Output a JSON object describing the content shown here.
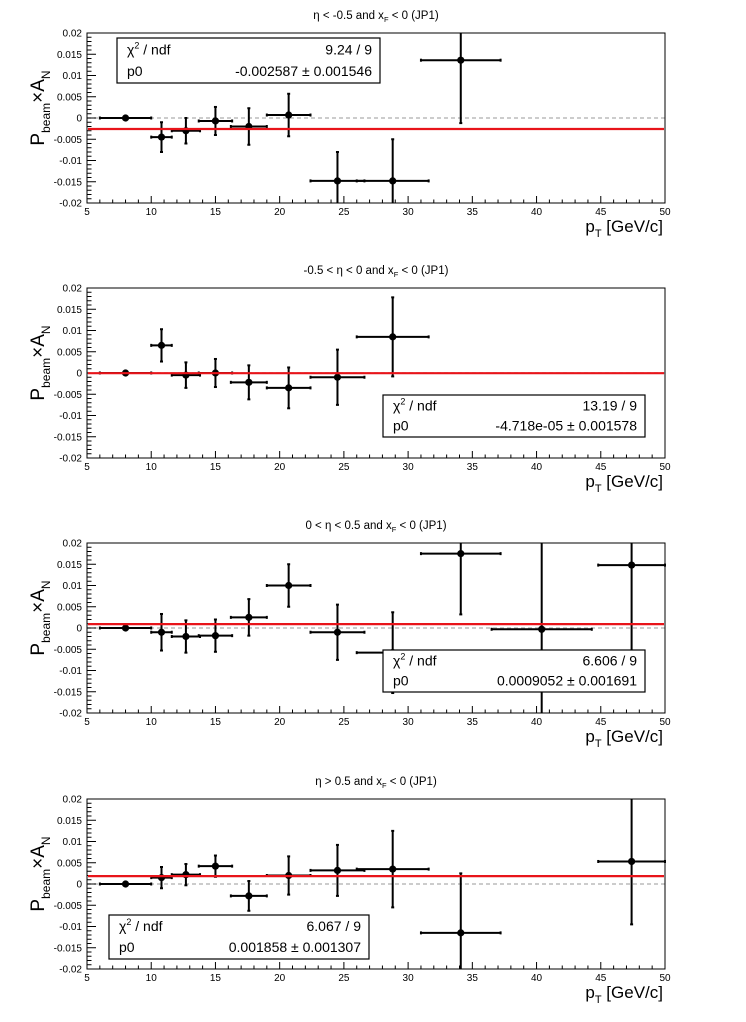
{
  "chart_data": [
    {
      "type": "scatter",
      "title_parts": [
        "η < -0.5 and x",
        "F",
        " < 0 (JP1)"
      ],
      "xlabel_parts": [
        "p",
        "T",
        " [GeV/c]"
      ],
      "ylabel_parts": [
        "P",
        "beam",
        "×A",
        "N"
      ],
      "xlim": [
        5,
        50
      ],
      "ylim": [
        -0.02,
        0.02
      ],
      "xticks": [
        5,
        10,
        15,
        20,
        25,
        30,
        35,
        40,
        45,
        50
      ],
      "yticks": [
        -0.02,
        -0.015,
        -0.01,
        -0.005,
        0,
        0.005,
        0.01,
        0.015,
        0.02
      ],
      "ytick_labels": [
        "-0.02",
        "-0.015",
        "-0.01",
        "-0.005",
        "0",
        "0.005",
        "0.01",
        "0.015",
        "0.02"
      ],
      "points": [
        {
          "x": 8.0,
          "xerr": 2.0,
          "y": 0.0,
          "yerr": 0.0
        },
        {
          "x": 10.8,
          "xerr": 0.8,
          "y": -0.0045,
          "yerr": 0.0035
        },
        {
          "x": 12.7,
          "xerr": 1.1,
          "y": -0.003,
          "yerr": 0.003
        },
        {
          "x": 15.0,
          "xerr": 1.3,
          "y": -0.0007,
          "yerr": 0.0033
        },
        {
          "x": 17.6,
          "xerr": 1.4,
          "y": -0.002,
          "yerr": 0.0043
        },
        {
          "x": 20.7,
          "xerr": 1.7,
          "y": 0.0007,
          "yerr": 0.005
        },
        {
          "x": 24.5,
          "xerr": 2.1,
          "y": -0.0148,
          "yerr": 0.0068
        },
        {
          "x": 28.8,
          "xerr": 2.8,
          "y": -0.0148,
          "yerr": 0.0098
        },
        {
          "x": 34.1,
          "xerr": 3.1,
          "y": 0.0136,
          "yerr": 0.0148
        }
      ],
      "fit": {
        "p0": -0.002587
      },
      "stats": {
        "label1": "χ",
        "label1_sup": "2",
        "label1_rest": " / ndf",
        "value1": "9.24 / 9",
        "label2": "p0",
        "value2": "-0.002587 ± 0.001546",
        "position": "top-left"
      }
    },
    {
      "type": "scatter",
      "title_parts": [
        "-0.5 < η < 0 and x",
        "F",
        " < 0 (JP1)"
      ],
      "xlabel_parts": [
        "p",
        "T",
        " [GeV/c]"
      ],
      "ylabel_parts": [
        "P",
        "beam",
        "×A",
        "N"
      ],
      "xlim": [
        5,
        50
      ],
      "ylim": [
        -0.02,
        0.02
      ],
      "xticks": [
        5,
        10,
        15,
        20,
        25,
        30,
        35,
        40,
        45,
        50
      ],
      "yticks": [
        -0.02,
        -0.015,
        -0.01,
        -0.005,
        0,
        0.005,
        0.01,
        0.015,
        0.02
      ],
      "ytick_labels": [
        "-0.02",
        "-0.015",
        "-0.01",
        "-0.005",
        "0",
        "0.005",
        "0.01",
        "0.015",
        "0.02"
      ],
      "points": [
        {
          "x": 8.0,
          "xerr": 2.0,
          "y": 0.0,
          "yerr": 0.0
        },
        {
          "x": 10.8,
          "xerr": 0.8,
          "y": 0.0065,
          "yerr": 0.0038
        },
        {
          "x": 12.7,
          "xerr": 1.1,
          "y": -0.0005,
          "yerr": 0.003
        },
        {
          "x": 15.0,
          "xerr": 1.3,
          "y": 0.0,
          "yerr": 0.0033
        },
        {
          "x": 17.6,
          "xerr": 1.4,
          "y": -0.0022,
          "yerr": 0.004
        },
        {
          "x": 20.7,
          "xerr": 1.7,
          "y": -0.0035,
          "yerr": 0.0048
        },
        {
          "x": 24.5,
          "xerr": 2.1,
          "y": -0.001,
          "yerr": 0.0065
        },
        {
          "x": 28.8,
          "xerr": 2.8,
          "y": 0.0085,
          "yerr": 0.0093
        }
      ],
      "fit": {
        "p0": -4.718e-05
      },
      "stats": {
        "label1": "χ",
        "label1_sup": "2",
        "label1_rest": " / ndf",
        "value1": "13.19 / 9",
        "label2": "p0",
        "value2": "-4.718e-05 ± 0.001578",
        "position": "bottom-right"
      }
    },
    {
      "type": "scatter",
      "title_parts": [
        "0 < η < 0.5 and x",
        "F",
        " < 0 (JP1)"
      ],
      "xlabel_parts": [
        "p",
        "T",
        " [GeV/c]"
      ],
      "ylabel_parts": [
        "P",
        "beam",
        "×A",
        "N"
      ],
      "xlim": [
        5,
        50
      ],
      "ylim": [
        -0.02,
        0.02
      ],
      "xticks": [
        5,
        10,
        15,
        20,
        25,
        30,
        35,
        40,
        45,
        50
      ],
      "yticks": [
        -0.02,
        -0.015,
        -0.01,
        -0.005,
        0,
        0.005,
        0.01,
        0.015,
        0.02
      ],
      "ytick_labels": [
        "-0.02",
        "-0.015",
        "-0.01",
        "-0.005",
        "0",
        "0.005",
        "0.01",
        "0.015",
        "0.02"
      ],
      "points": [
        {
          "x": 8.0,
          "xerr": 2.0,
          "y": 0.0,
          "yerr": 0.0
        },
        {
          "x": 10.8,
          "xerr": 0.8,
          "y": -0.001,
          "yerr": 0.0043
        },
        {
          "x": 12.7,
          "xerr": 1.1,
          "y": -0.002,
          "yerr": 0.0038
        },
        {
          "x": 15.0,
          "xerr": 1.3,
          "y": -0.0018,
          "yerr": 0.0038
        },
        {
          "x": 17.6,
          "xerr": 1.4,
          "y": 0.0025,
          "yerr": 0.0043
        },
        {
          "x": 20.7,
          "xerr": 1.7,
          "y": 0.01,
          "yerr": 0.005
        },
        {
          "x": 24.5,
          "xerr": 2.1,
          "y": -0.001,
          "yerr": 0.0065
        },
        {
          "x": 28.8,
          "xerr": 2.8,
          "y": -0.0058,
          "yerr": 0.0095
        },
        {
          "x": 34.1,
          "xerr": 3.1,
          "y": 0.0175,
          "yerr": 0.0143
        },
        {
          "x": 40.4,
          "xerr": 3.9,
          "y": -0.0003,
          "yerr": 0.023
        },
        {
          "x": 47.4,
          "xerr": 2.6,
          "y": 0.0148,
          "yerr": 0.023
        }
      ],
      "fit": {
        "p0": 0.0009052
      },
      "stats": {
        "label1": "χ",
        "label1_sup": "2",
        "label1_rest": " / ndf",
        "value1": "6.606 / 9",
        "label2": "p0",
        "value2": "0.0009052 ± 0.001691",
        "position": "bottom-right"
      }
    },
    {
      "type": "scatter",
      "title_parts": [
        "η > 0.5 and x",
        "F",
        " < 0 (JP1)"
      ],
      "xlabel_parts": [
        "p",
        "T",
        " [GeV/c]"
      ],
      "ylabel_parts": [
        "P",
        "beam",
        "×A",
        "N"
      ],
      "xlim": [
        5,
        50
      ],
      "ylim": [
        -0.02,
        0.02
      ],
      "xticks": [
        5,
        10,
        15,
        20,
        25,
        30,
        35,
        40,
        45,
        50
      ],
      "yticks": [
        -0.02,
        -0.015,
        -0.01,
        -0.005,
        0,
        0.005,
        0.01,
        0.015,
        0.02
      ],
      "ytick_labels": [
        "-0.02",
        "-0.015",
        "-0.01",
        "-0.005",
        "0",
        "0.005",
        "0.01",
        "0.015",
        "0.02"
      ],
      "points": [
        {
          "x": 8.0,
          "xerr": 2.0,
          "y": 0.0,
          "yerr": 0.0
        },
        {
          "x": 10.8,
          "xerr": 0.8,
          "y": 0.0015,
          "yerr": 0.0025
        },
        {
          "x": 12.7,
          "xerr": 1.1,
          "y": 0.0022,
          "yerr": 0.0025
        },
        {
          "x": 15.0,
          "xerr": 1.3,
          "y": 0.0042,
          "yerr": 0.0025
        },
        {
          "x": 17.6,
          "xerr": 1.4,
          "y": -0.0028,
          "yerr": 0.0035
        },
        {
          "x": 20.7,
          "xerr": 1.7,
          "y": 0.002,
          "yerr": 0.0045
        },
        {
          "x": 24.5,
          "xerr": 2.1,
          "y": 0.0032,
          "yerr": 0.006
        },
        {
          "x": 28.8,
          "xerr": 2.8,
          "y": 0.0035,
          "yerr": 0.009
        },
        {
          "x": 34.1,
          "xerr": 3.1,
          "y": -0.0115,
          "yerr": 0.014
        },
        {
          "x": 47.4,
          "xerr": 2.6,
          "y": 0.0053,
          "yerr": 0.0148
        }
      ],
      "fit": {
        "p0": 0.001858
      },
      "stats": {
        "label1": "χ",
        "label1_sup": "2",
        "label1_rest": " / ndf",
        "value1": "6.067 / 9",
        "label2": "p0",
        "value2": "0.001858 ± 0.001307",
        "position": "bottom-left"
      }
    }
  ],
  "colors": {
    "points": "#000000",
    "fit_line": "#e8141a",
    "zero_line": "#bcbcbc",
    "frame": "#000000"
  }
}
